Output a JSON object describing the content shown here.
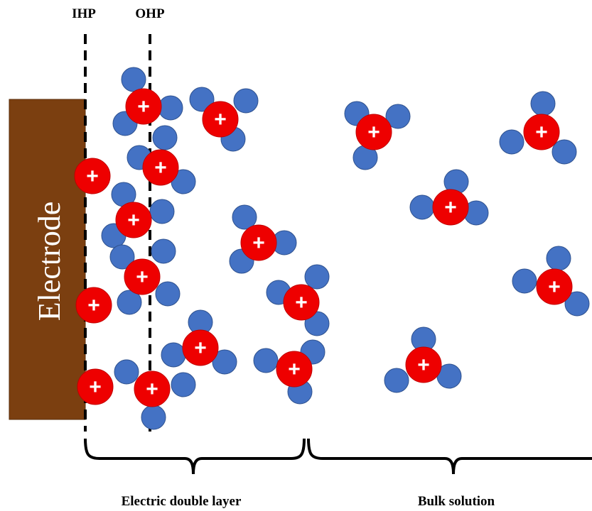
{
  "labels": {
    "ihp": "IHP",
    "ohp": "OHP",
    "electrode": "Electrode",
    "double_layer": "Electric double layer",
    "bulk": "Bulk solution"
  },
  "ion": {
    "symbol": "+"
  },
  "colors": {
    "electrode": "#7b3f10",
    "cation": "#ee0000",
    "water": "#4472c4",
    "line": "#000000"
  }
}
